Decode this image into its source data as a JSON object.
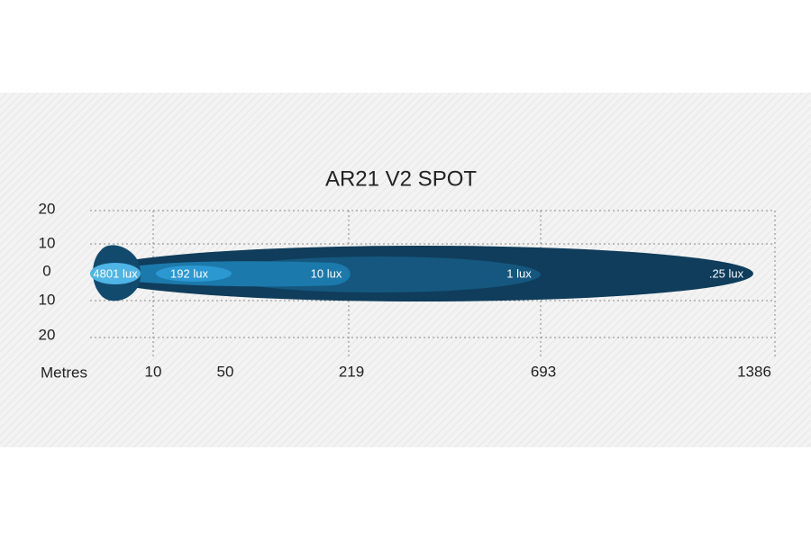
{
  "title": "AR21 V2 SPOT",
  "y_labels": [
    "20",
    "10",
    "0",
    "10",
    "20"
  ],
  "x_axis_label": "Metres",
  "x_labels": [
    "10",
    "50",
    "219",
    "693",
    "1386"
  ],
  "beam_labels": [
    "4801 lux",
    "192 lux",
    "10 lux",
    "1 lux",
    ".25 lux"
  ]
}
